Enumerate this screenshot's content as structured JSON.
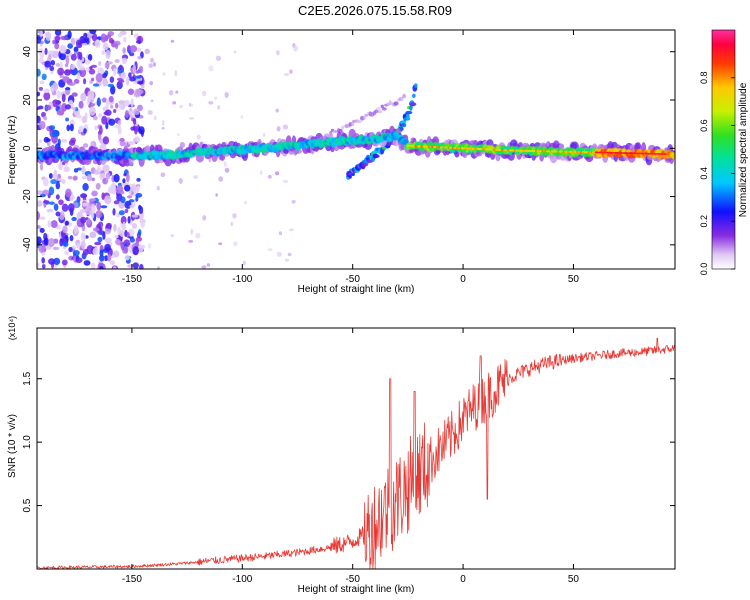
{
  "title": "C2E5.2026.075.15.58.R09",
  "colors": {
    "snr_line": "#e83a35",
    "axis": "#000000",
    "background": "#ffffff"
  },
  "chart_data": [
    {
      "type": "heatmap",
      "name": "spectrogram",
      "xlabel": "Height of straight line (km)",
      "ylabel": "Frequency (Hz)",
      "xlim": [
        -193,
        96
      ],
      "ylim": [
        -50,
        49
      ],
      "xticks": [
        -150,
        -100,
        -50,
        0,
        50
      ],
      "yticks": [
        -40,
        -20,
        0,
        20,
        40
      ],
      "colorbar": {
        "label": "Normalized spectral amplitude",
        "range": [
          0,
          1
        ],
        "ticks": [
          "0.0",
          "0.2",
          "0.4",
          "0.6",
          "0.8"
        ],
        "colormap": "rainbow (white-violet-blue-cyan-green-yellow-red-magenta)"
      },
      "main_band": {
        "description": "Central Doppler band near 0 Hz, frequency rising slowly with height then converging to about -2 Hz",
        "points": [
          {
            "x": -190,
            "y": -3
          },
          {
            "x": -170,
            "y": -3
          },
          {
            "x": -150,
            "y": -3
          },
          {
            "x": -130,
            "y": -2.5
          },
          {
            "x": -110,
            "y": -1
          },
          {
            "x": -90,
            "y": 0
          },
          {
            "x": -70,
            "y": 1.5
          },
          {
            "x": -55,
            "y": 3
          },
          {
            "x": -40,
            "y": 4
          },
          {
            "x": -30,
            "y": 5
          },
          {
            "x": -25,
            "y": 1
          },
          {
            "x": 0,
            "y": 0
          },
          {
            "x": 25,
            "y": -1
          },
          {
            "x": 50,
            "y": -1.5
          },
          {
            "x": 75,
            "y": -2
          },
          {
            "x": 95,
            "y": -2.5
          }
        ],
        "peak_region_x": [
          60,
          92
        ]
      },
      "diagonal_feature": {
        "description": "Branch rising from about -10 Hz at -50 km to about 28 Hz at -22 km",
        "points": [
          {
            "x": -52,
            "y": -11
          },
          {
            "x": -44,
            "y": -6
          },
          {
            "x": -38,
            "y": -1
          },
          {
            "x": -32,
            "y": 4
          },
          {
            "x": -27,
            "y": 10
          },
          {
            "x": -23,
            "y": 18
          },
          {
            "x": -21,
            "y": 29
          }
        ]
      },
      "noise_region_x": [
        -193,
        -145
      ]
    },
    {
      "type": "line",
      "name": "snr",
      "xlabel": "Height of straight line (km)",
      "ylabel": "SNR (10 * v/v)",
      "y_multiplier": "(x10⁴)",
      "xlim": [
        -193,
        96
      ],
      "ylim": [
        0,
        1.9
      ],
      "xticks": [
        -150,
        -100,
        -50,
        0,
        50
      ],
      "yticks": [
        "0.5",
        "1.0",
        "1.5"
      ],
      "trend": [
        {
          "x": -193,
          "y": 0.01
        },
        {
          "x": -170,
          "y": 0.015
        },
        {
          "x": -150,
          "y": 0.02
        },
        {
          "x": -130,
          "y": 0.04
        },
        {
          "x": -110,
          "y": 0.07
        },
        {
          "x": -90,
          "y": 0.1
        },
        {
          "x": -75,
          "y": 0.13
        },
        {
          "x": -60,
          "y": 0.17
        },
        {
          "x": -50,
          "y": 0.22
        },
        {
          "x": -42,
          "y": 0.3
        },
        {
          "x": -36,
          "y": 0.45
        },
        {
          "x": -30,
          "y": 0.55
        },
        {
          "x": -25,
          "y": 0.65
        },
        {
          "x": -20,
          "y": 0.75
        },
        {
          "x": -15,
          "y": 0.85
        },
        {
          "x": -10,
          "y": 0.95
        },
        {
          "x": -5,
          "y": 1.05
        },
        {
          "x": 0,
          "y": 1.18
        },
        {
          "x": 5,
          "y": 1.28
        },
        {
          "x": 10,
          "y": 1.35
        },
        {
          "x": 15,
          "y": 1.42
        },
        {
          "x": 20,
          "y": 1.5
        },
        {
          "x": 30,
          "y": 1.58
        },
        {
          "x": 40,
          "y": 1.63
        },
        {
          "x": 50,
          "y": 1.66
        },
        {
          "x": 60,
          "y": 1.68
        },
        {
          "x": 70,
          "y": 1.7
        },
        {
          "x": 80,
          "y": 1.71
        },
        {
          "x": 96,
          "y": 1.74
        }
      ],
      "notable_peaks": [
        {
          "x": -33,
          "y": 1.5
        },
        {
          "x": -22,
          "y": 1.4
        },
        {
          "x": 8,
          "y": 1.68
        },
        {
          "x": 88,
          "y": 1.82
        }
      ],
      "notable_dips": [
        {
          "x": 11,
          "y": 0.55
        }
      ]
    }
  ]
}
